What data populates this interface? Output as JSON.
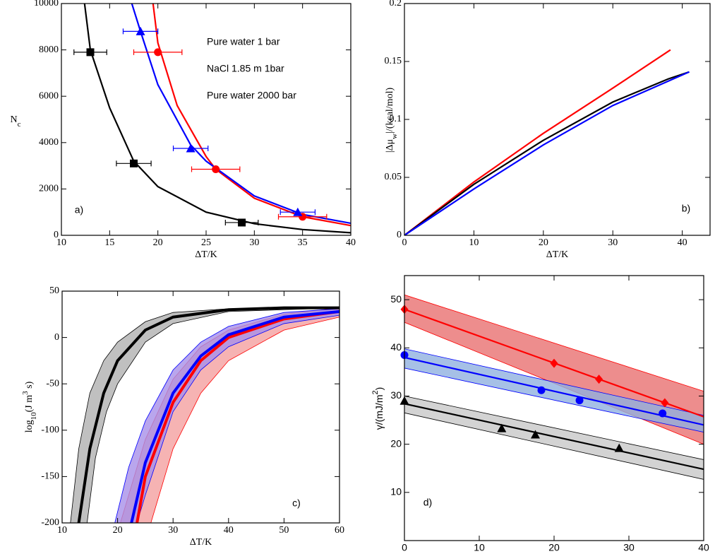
{
  "chart_data": [
    {
      "type": "scatter",
      "xlabel": "ΔT/K",
      "ylabel": [
        {
          "text": "N"
        },
        {
          "text": "c",
          "sub": true
        }
      ],
      "panel_label": "a)",
      "xlim": [
        10,
        40
      ],
      "ylim": [
        0,
        10000
      ],
      "xticks": [
        10,
        15,
        20,
        25,
        30,
        35,
        40
      ],
      "yticks": [
        0,
        2000,
        4000,
        6000,
        8000,
        10000
      ],
      "legend": "upper right",
      "series": [
        {
          "name": "Pure water 1 bar",
          "color": "#000000",
          "marker": "square",
          "x": [
            13,
            17.5,
            28.7
          ],
          "values": [
            7900,
            3100,
            550
          ],
          "xerr": [
            1.7,
            1.8,
            1.7
          ],
          "curve": {
            "x": [
              12.4,
              13,
              15,
              17.5,
              20,
              25,
              30,
              35,
              40
            ],
            "values": [
              10000,
              8000,
              5500,
              3200,
              2100,
              1000,
              500,
              250,
              110
            ]
          }
        },
        {
          "name": "NaCl 1.85 m 1bar",
          "color": "#ff0000",
          "marker": "circle",
          "x": [
            20,
            26,
            35
          ],
          "values": [
            7900,
            2850,
            800
          ],
          "xerr": [
            2.5,
            2.5,
            2.5
          ],
          "curve": {
            "x": [
              19.5,
              20,
              22,
              25,
              26,
              30,
              35,
              40
            ],
            "values": [
              10000,
              8300,
              5600,
              3400,
              2850,
              1600,
              800,
              420
            ]
          }
        },
        {
          "name": "Pure water 2000 bar",
          "color": "#0000ff",
          "marker": "triangle",
          "x": [
            18.2,
            23.4,
            34.5
          ],
          "values": [
            8800,
            3750,
            1000
          ],
          "xerr": [
            1.8,
            1.8,
            1.8
          ],
          "curve": {
            "x": [
              17.3,
              18.2,
              20,
              23.4,
              25,
              30,
              35,
              40
            ],
            "values": [
              10000,
              8800,
              6500,
              3900,
              3200,
              1700,
              900,
              520
            ]
          }
        }
      ]
    },
    {
      "type": "line",
      "xlabel": "ΔT/K",
      "ylabel": [
        {
          "text": "|Δμ"
        },
        {
          "text": "w",
          "sub": true
        },
        {
          "text": "|/(kcal/mol)"
        }
      ],
      "panel_label": "b)",
      "xlim": [
        0,
        44
      ],
      "ylim": [
        0,
        0.2
      ],
      "xticks": [
        0,
        10,
        20,
        30,
        40
      ],
      "yticks": [
        0,
        0.05,
        0.1,
        0.15,
        0.2
      ],
      "series": [
        {
          "color": "#ff0000",
          "x": [
            0,
            10,
            20,
            30,
            38.3
          ],
          "values": [
            0,
            0.046,
            0.088,
            0.127,
            0.16
          ]
        },
        {
          "color": "#000000",
          "x": [
            0,
            10,
            20,
            30,
            38,
            41
          ],
          "values": [
            0,
            0.044,
            0.082,
            0.115,
            0.135,
            0.141
          ]
        },
        {
          "color": "#0000ff",
          "x": [
            0,
            10,
            20,
            30,
            41
          ],
          "values": [
            0,
            0.04,
            0.078,
            0.112,
            0.141
          ]
        }
      ]
    },
    {
      "type": "line",
      "xlabel": "ΔT/K",
      "ylabel": [
        {
          "text": "log"
        },
        {
          "text": "10",
          "sub": true
        },
        {
          "text": "(J m"
        },
        {
          "text": "3",
          "sup": true
        },
        {
          "text": " s)"
        }
      ],
      "panel_label": "c)",
      "xlim": [
        10,
        60
      ],
      "ylim": [
        -200,
        50
      ],
      "xticks": [
        10,
        20,
        30,
        40,
        50,
        60
      ],
      "yticks": [
        -200,
        -150,
        -100,
        -50,
        0,
        50
      ],
      "series": [
        {
          "color": "#000000",
          "band_color": "#b0b0b0",
          "x": [
            13,
            15,
            17.5,
            20,
            25,
            30,
            40,
            50,
            60
          ],
          "values": [
            -200,
            -120,
            -60,
            -25,
            8,
            22,
            30,
            32,
            32
          ],
          "band": {
            "upper": {
              "x": [
                11.5,
                13,
                15,
                17.5,
                20,
                25,
                30,
                40,
                60
              ],
              "values": [
                -200,
                -120,
                -60,
                -25,
                -5,
                17,
                27,
                31,
                33
              ]
            },
            "lower": {
              "x": [
                14.5,
                16,
                18,
                20,
                25,
                30,
                40,
                60
              ],
              "values": [
                -200,
                -130,
                -80,
                -50,
                -5,
                15,
                28,
                32
              ]
            }
          }
        },
        {
          "color": "#ff0000",
          "band_color": "#f4a0a0",
          "x": [
            23.5,
            25,
            30,
            35,
            40,
            50,
            60
          ],
          "values": [
            -200,
            -150,
            -70,
            -25,
            0,
            20,
            28
          ],
          "band": {
            "upper": {
              "x": [
                20.5,
                25,
                30,
                35,
                40,
                50,
                60
              ],
              "values": [
                -200,
                -110,
                -45,
                -10,
                8,
                25,
                32
              ]
            },
            "lower": {
              "x": [
                26,
                30,
                35,
                40,
                50,
                60
              ],
              "values": [
                -200,
                -120,
                -60,
                -25,
                8,
                22
              ]
            }
          }
        },
        {
          "color": "#0000ff",
          "band_color": "#a890e8",
          "x": [
            22.5,
            25,
            30,
            35,
            40,
            50,
            60
          ],
          "values": [
            -200,
            -135,
            -60,
            -20,
            3,
            22,
            28
          ],
          "band": {
            "upper": {
              "x": [
                19.5,
                22,
                25,
                30,
                35,
                40,
                50,
                60
              ],
              "values": [
                -200,
                -140,
                -90,
                -35,
                -5,
                12,
                27,
                31
              ]
            },
            "lower": {
              "x": [
                23.5,
                25,
                30,
                35,
                40,
                50,
                60
              ],
              "values": [
                -200,
                -170,
                -80,
                -35,
                -10,
                15,
                24
              ]
            }
          }
        }
      ]
    },
    {
      "type": "scatter",
      "xlabel": "ΔT/K",
      "ylabel": [
        {
          "text": "γ/(mJ/m"
        },
        {
          "text": "2",
          "sup": true
        },
        {
          "text": ")"
        }
      ],
      "panel_label": "d)",
      "xlim": [
        0,
        40
      ],
      "ylim": [
        0,
        55
      ],
      "xticks": [
        0,
        10,
        20,
        30,
        40
      ],
      "yticks": [
        10,
        20,
        30,
        40,
        50
      ],
      "series": [
        {
          "color": "#ff0000",
          "band_color": "#e87070",
          "marker": "diamond",
          "x": [
            0,
            20,
            26,
            34.8
          ],
          "values": [
            48,
            36.8,
            33.5,
            28.6
          ],
          "curve": {
            "x": [
              0,
              40
            ],
            "values": [
              48,
              25.7
            ]
          },
          "band": {
            "upper": {
              "x": [
                0,
                40
              ],
              "values": [
                51,
                31
              ]
            },
            "lower": {
              "x": [
                0,
                40
              ],
              "values": [
                45.3,
                20
              ]
            }
          }
        },
        {
          "color": "#0000ff",
          "band_color": "#90b0e0",
          "marker": "circle",
          "x": [
            0,
            18.3,
            23.4,
            34.5
          ],
          "values": [
            38.5,
            31.2,
            29.1,
            26.4
          ],
          "curve": {
            "x": [
              0,
              40
            ],
            "values": [
              38,
              24
            ]
          },
          "band": {
            "upper": {
              "x": [
                0,
                40
              ],
              "values": [
                39.8,
                26
              ]
            },
            "lower": {
              "x": [
                0,
                40
              ],
              "values": [
                35.8,
                22.5
              ]
            }
          }
        },
        {
          "color": "#000000",
          "band_color": "#c8c8c8",
          "marker": "triangle",
          "x": [
            0,
            13,
            17.5,
            28.7
          ],
          "values": [
            29,
            23.3,
            22,
            19.2
          ],
          "curve": {
            "x": [
              0,
              40
            ],
            "values": [
              28.4,
              14.8
            ]
          },
          "band": {
            "upper": {
              "x": [
                0,
                40
              ],
              "values": [
                30,
                16.8
              ]
            },
            "lower": {
              "x": [
                0,
                40
              ],
              "values": [
                26.5,
                12.7
              ]
            }
          }
        }
      ]
    }
  ]
}
